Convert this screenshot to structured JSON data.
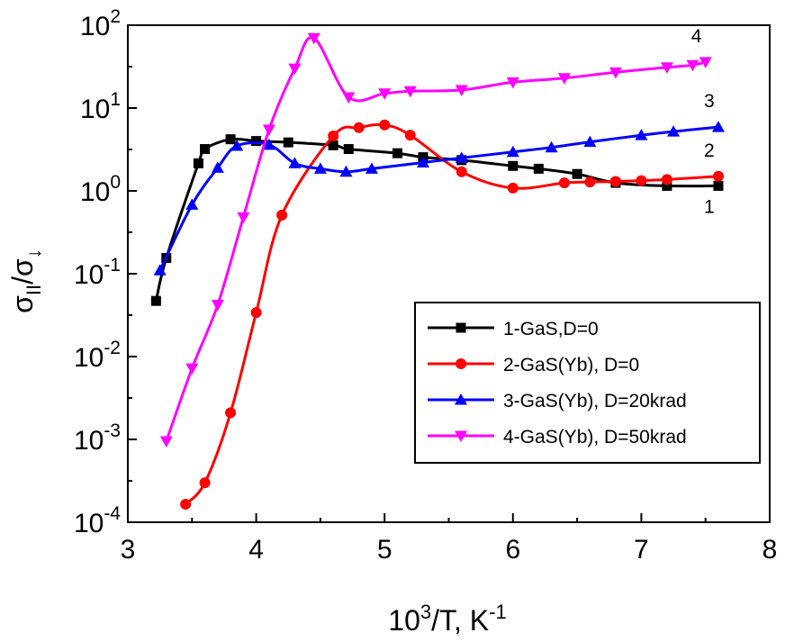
{
  "chart_data": {
    "type": "line",
    "xlabel": {
      "base": "10",
      "base_sup": "3",
      "rest": "/T, K",
      "rest_sup": "-1"
    },
    "ylabel": {
      "sigma1": "σ",
      "sub1": "II",
      "slash": "/",
      "sigma2": "σ",
      "sub2": "↓"
    },
    "xlim": [
      3,
      8
    ],
    "x_ticks": [
      3,
      4,
      5,
      6,
      7,
      8
    ],
    "x_tick_labels": [
      "3",
      "4",
      "5",
      "6",
      "7",
      "8"
    ],
    "y_scale": "log",
    "ylim": [
      0.0001,
      100
    ],
    "y_ticks": [
      {
        "value": 0.0001,
        "base": "10",
        "exp": "-4"
      },
      {
        "value": 0.001,
        "base": "10",
        "exp": "-3"
      },
      {
        "value": 0.01,
        "base": "10",
        "exp": "-2"
      },
      {
        "value": 0.1,
        "base": "10",
        "exp": "-1"
      },
      {
        "value": 1,
        "base": "10",
        "exp": "0"
      },
      {
        "value": 10,
        "base": "10",
        "exp": "1"
      },
      {
        "value": 100,
        "base": "10",
        "exp": "2"
      }
    ],
    "grid": false,
    "legend_position": "lower-right",
    "series": [
      {
        "name": "1-GaS,D=0",
        "label": "1",
        "color": "#000000",
        "marker": "square",
        "x": [
          3.22,
          3.3,
          3.55,
          3.6,
          3.8,
          4.0,
          4.25,
          4.6,
          4.72,
          5.1,
          5.3,
          5.6,
          6.0,
          6.2,
          6.5,
          6.8,
          7.2,
          7.6
        ],
        "y": [
          0.047,
          0.155,
          2.15,
          3.2,
          4.2,
          4.0,
          3.85,
          3.55,
          3.2,
          2.85,
          2.55,
          2.35,
          2.0,
          1.85,
          1.6,
          1.25,
          1.15,
          1.15
        ]
      },
      {
        "name": "2-GaS(Yb), D=0",
        "label": "2",
        "color": "#ff0000",
        "marker": "circle",
        "x": [
          3.45,
          3.6,
          3.8,
          4.0,
          4.2,
          4.6,
          4.8,
          5.0,
          5.2,
          5.6,
          6.0,
          6.4,
          6.6,
          6.8,
          7.0,
          7.2,
          7.6
        ],
        "y": [
          0.000165,
          0.0003,
          0.0021,
          0.034,
          0.51,
          4.6,
          5.8,
          6.25,
          4.7,
          1.7,
          1.08,
          1.25,
          1.28,
          1.3,
          1.33,
          1.37,
          1.5
        ]
      },
      {
        "name": "3-GaS(Yb), D=20krad",
        "label": "3",
        "color": "#0000ff",
        "marker": "triangle-up",
        "x": [
          3.25,
          3.5,
          3.7,
          3.85,
          4.1,
          4.3,
          4.5,
          4.7,
          4.9,
          5.3,
          5.6,
          6.0,
          6.3,
          6.6,
          7.0,
          7.25,
          7.6
        ],
        "y": [
          0.11,
          0.68,
          1.9,
          3.5,
          3.6,
          2.15,
          1.85,
          1.7,
          1.85,
          2.2,
          2.5,
          2.95,
          3.35,
          3.9,
          4.7,
          5.2,
          5.9
        ]
      },
      {
        "name": "4-GaS(Yb), D=50krad",
        "label": "4",
        "color": "#ff00ff",
        "marker": "triangle-down",
        "x": [
          3.3,
          3.5,
          3.7,
          3.9,
          4.1,
          4.3,
          4.45,
          4.72,
          5.0,
          5.2,
          5.6,
          6.0,
          6.4,
          6.8,
          7.2,
          7.4,
          7.5
        ],
        "y": [
          0.00095,
          0.0072,
          0.042,
          0.48,
          5.5,
          30,
          70,
          13.5,
          15,
          16,
          16.5,
          20.5,
          23,
          27,
          31,
          33,
          36
        ]
      }
    ]
  }
}
